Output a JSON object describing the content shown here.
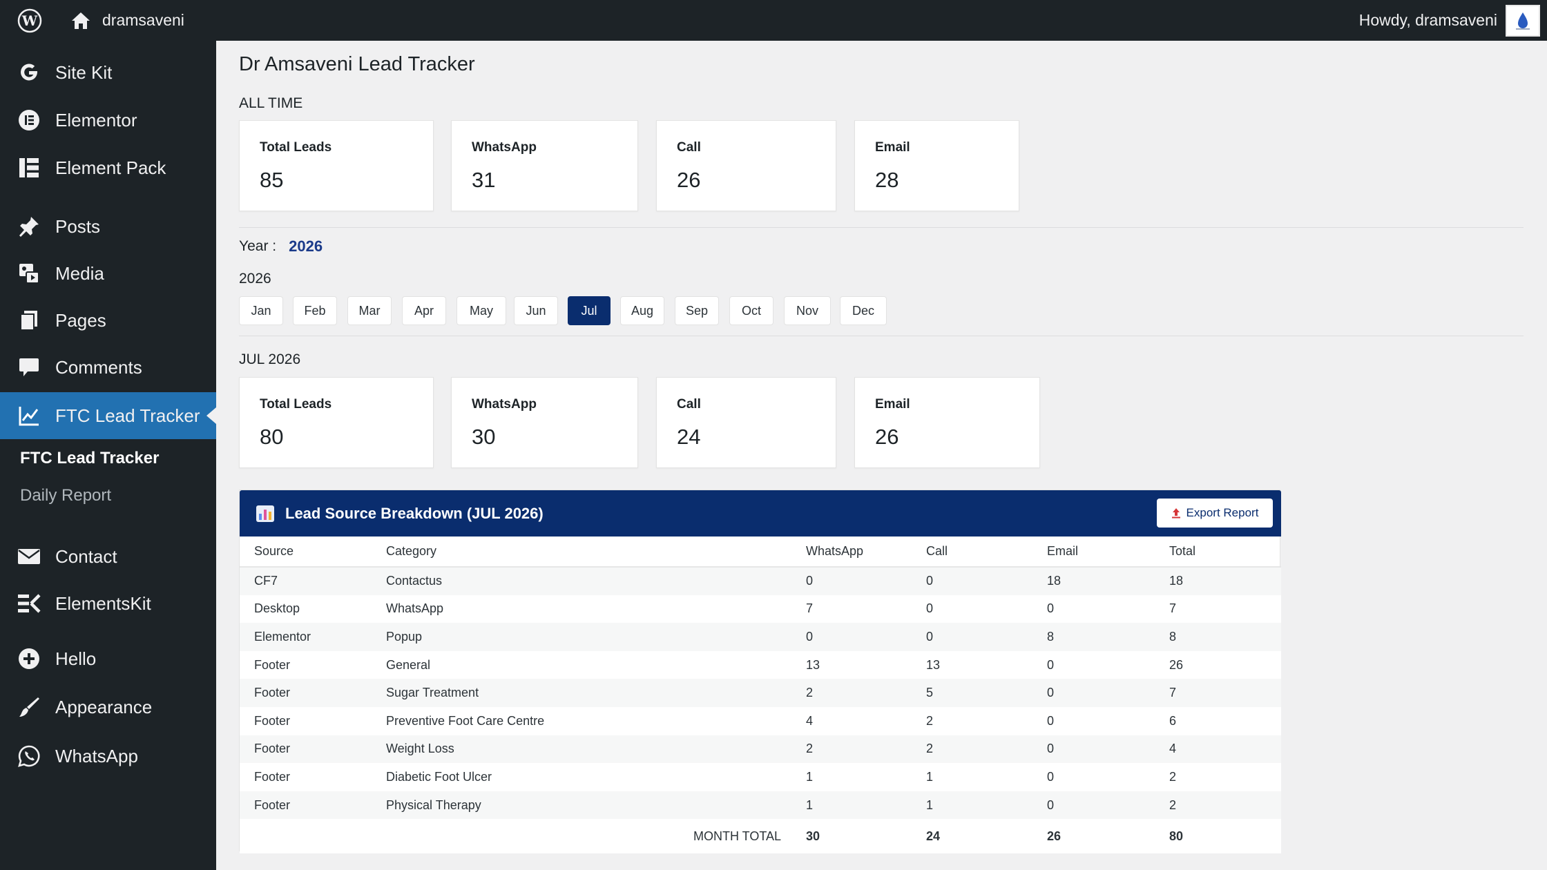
{
  "adminbar": {
    "site_name": "dramsaveni",
    "greeting": "Howdy, dramsaveni"
  },
  "sidebar": {
    "items": [
      {
        "label": "Site Kit",
        "icon": "google-g-icon"
      },
      {
        "label": "Elementor",
        "icon": "elementor-icon"
      },
      {
        "label": "Element Pack",
        "icon": "element-pack-icon"
      },
      {
        "label": "Posts",
        "icon": "pushpin-icon"
      },
      {
        "label": "Media",
        "icon": "media-icon"
      },
      {
        "label": "Pages",
        "icon": "pages-icon"
      },
      {
        "label": "Comments",
        "icon": "comment-bubble-icon"
      },
      {
        "label": "FTC Lead Tracker",
        "icon": "chart-line-icon",
        "active": true
      },
      {
        "label": "Contact",
        "icon": "envelope-icon"
      },
      {
        "label": "ElementsKit",
        "icon": "elementskit-icon"
      },
      {
        "label": "Hello",
        "icon": "plus-circle-icon"
      },
      {
        "label": "Appearance",
        "icon": "paintbrush-icon"
      },
      {
        "label": "WhatsApp",
        "icon": "whatsapp-icon"
      }
    ],
    "submenu": [
      {
        "label": "FTC Lead Tracker",
        "current": true
      },
      {
        "label": "Daily Report",
        "current": false
      }
    ]
  },
  "page": {
    "title": "Dr Amsaveni Lead Tracker",
    "all_time_label": "ALL TIME",
    "all_time_cards": [
      {
        "label": "Total Leads",
        "value": "85"
      },
      {
        "label": "WhatsApp",
        "value": "31"
      },
      {
        "label": "Call",
        "value": "26"
      },
      {
        "label": "Email",
        "value": "28"
      }
    ],
    "year_label": "Year :",
    "year_value": "2026",
    "months_year_label": "2026",
    "months": [
      "Jan",
      "Feb",
      "Mar",
      "Apr",
      "May",
      "Jun",
      "Jul",
      "Aug",
      "Sep",
      "Oct",
      "Nov",
      "Dec"
    ],
    "active_month": "Jul",
    "month_label": "JUL 2026",
    "month_cards": [
      {
        "label": "Total Leads",
        "value": "80"
      },
      {
        "label": "WhatsApp",
        "value": "30"
      },
      {
        "label": "Call",
        "value": "24"
      },
      {
        "label": "Email",
        "value": "26"
      }
    ]
  },
  "breakdown": {
    "title": "Lead Source Breakdown (JUL 2026)",
    "export_label": "Export Report",
    "columns": [
      "Source",
      "Category",
      "WhatsApp",
      "Call",
      "Email",
      "Total"
    ],
    "rows": [
      [
        "CF7",
        "Contactus",
        "0",
        "0",
        "18",
        "18"
      ],
      [
        "Desktop",
        "WhatsApp",
        "7",
        "0",
        "0",
        "7"
      ],
      [
        "Elementor",
        "Popup",
        "0",
        "0",
        "8",
        "8"
      ],
      [
        "Footer",
        "General",
        "13",
        "13",
        "0",
        "26"
      ],
      [
        "Footer",
        "Sugar Treatment",
        "2",
        "5",
        "0",
        "7"
      ],
      [
        "Footer",
        "Preventive Foot Care Centre",
        "4",
        "2",
        "0",
        "6"
      ],
      [
        "Footer",
        "Weight Loss",
        "2",
        "2",
        "0",
        "4"
      ],
      [
        "Footer",
        "Diabetic Foot Ulcer",
        "1",
        "1",
        "0",
        "2"
      ],
      [
        "Footer",
        "Physical Therapy",
        "1",
        "1",
        "0",
        "2"
      ]
    ],
    "total_label": "MONTH TOTAL",
    "totals": {
      "whatsapp": "30",
      "call": "24",
      "email": "26",
      "total": "80"
    }
  },
  "colors": {
    "sidebar_bg": "#1d2327",
    "active_menu": "#2271b1",
    "accent_navy": "#0a2d6e"
  }
}
